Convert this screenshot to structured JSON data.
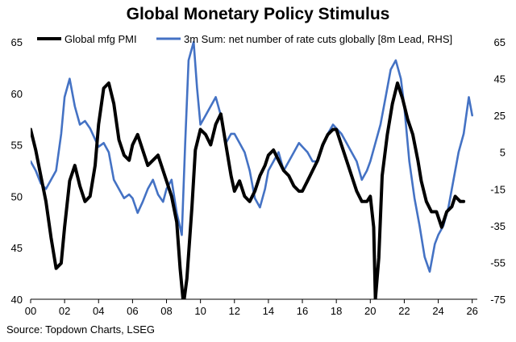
{
  "chart_data": {
    "type": "line",
    "title": "Global Monetary Policy Stimulus",
    "source": "Source: Topdown Charts, LSEG",
    "x_ticks": [
      "00",
      "02",
      "04",
      "06",
      "08",
      "10",
      "12",
      "14",
      "16",
      "18",
      "20",
      "22",
      "24",
      "26"
    ],
    "xlim": [
      2000,
      2026.3
    ],
    "y_left": {
      "ticks": [
        "65",
        "60",
        "55",
        "50",
        "45",
        "40"
      ],
      "lim": [
        40,
        65
      ]
    },
    "y_right": {
      "ticks": [
        "65",
        "45",
        "25",
        "5",
        "-15",
        "-35",
        "-55",
        "-75"
      ],
      "lim": [
        -75,
        65
      ]
    },
    "series": [
      {
        "name": "Global mfg PMI",
        "axis": "left",
        "color": "#000000",
        "x": [
          2000.0,
          2000.3,
          2000.6,
          2000.9,
          2001.2,
          2001.5,
          2001.8,
          2002.0,
          2002.3,
          2002.6,
          2002.9,
          2003.2,
          2003.5,
          2003.8,
          2004.0,
          2004.3,
          2004.6,
          2004.9,
          2005.2,
          2005.5,
          2005.8,
          2006.0,
          2006.3,
          2006.6,
          2006.9,
          2007.2,
          2007.5,
          2007.8,
          2008.0,
          2008.3,
          2008.6,
          2008.8,
          2009.0,
          2009.2,
          2009.5,
          2009.7,
          2010.0,
          2010.3,
          2010.6,
          2010.9,
          2011.2,
          2011.5,
          2011.8,
          2012.0,
          2012.3,
          2012.6,
          2012.9,
          2013.2,
          2013.5,
          2013.8,
          2014.0,
          2014.3,
          2014.6,
          2014.9,
          2015.2,
          2015.5,
          2015.8,
          2016.0,
          2016.3,
          2016.6,
          2016.9,
          2017.2,
          2017.5,
          2017.8,
          2018.0,
          2018.3,
          2018.6,
          2018.9,
          2019.2,
          2019.5,
          2019.8,
          2020.0,
          2020.2,
          2020.3,
          2020.5,
          2020.7,
          2021.0,
          2021.3,
          2021.6,
          2021.9,
          2022.2,
          2022.5,
          2022.8,
          2023.0,
          2023.3,
          2023.6,
          2023.9,
          2024.2,
          2024.5,
          2024.8,
          2025.0,
          2025.3,
          2025.5
        ],
        "y": [
          56.5,
          54.5,
          52.0,
          49.5,
          46.0,
          43.0,
          43.5,
          47.0,
          51.5,
          53.0,
          51.0,
          49.5,
          50.0,
          53.0,
          57.0,
          60.5,
          61.0,
          59.0,
          55.5,
          54.0,
          53.5,
          55.0,
          56.0,
          54.5,
          53.0,
          53.5,
          54.0,
          52.5,
          51.5,
          50.0,
          47.5,
          43.0,
          39.5,
          42.0,
          49.0,
          54.5,
          56.5,
          56.0,
          55.0,
          57.0,
          58.0,
          55.0,
          52.0,
          50.5,
          51.5,
          50.0,
          49.5,
          50.5,
          52.0,
          53.0,
          54.0,
          54.5,
          53.5,
          52.5,
          52.0,
          51.0,
          50.5,
          50.5,
          51.5,
          52.5,
          53.5,
          55.0,
          56.0,
          56.5,
          56.5,
          55.0,
          53.5,
          52.0,
          50.5,
          49.5,
          49.5,
          50.0,
          47.0,
          40.0,
          44.0,
          52.0,
          56.0,
          59.0,
          61.0,
          59.5,
          57.5,
          56.0,
          53.5,
          51.5,
          49.5,
          48.5,
          48.5,
          47.0,
          48.5,
          49.0,
          50.0,
          49.5,
          49.5
        ]
      },
      {
        "name": "3m Sum: net number of rate cuts globally [8m Lead, RHS]",
        "axis": "right",
        "color": "#4472c4",
        "x": [
          2000.0,
          2000.3,
          2000.6,
          2000.9,
          2001.2,
          2001.5,
          2001.8,
          2002.0,
          2002.3,
          2002.6,
          2002.9,
          2003.2,
          2003.5,
          2003.8,
          2004.0,
          2004.3,
          2004.6,
          2004.9,
          2005.2,
          2005.5,
          2005.8,
          2006.0,
          2006.3,
          2006.6,
          2006.9,
          2007.2,
          2007.5,
          2007.8,
          2008.0,
          2008.3,
          2008.6,
          2008.9,
          2009.1,
          2009.3,
          2009.6,
          2009.8,
          2010.0,
          2010.3,
          2010.6,
          2010.9,
          2011.2,
          2011.5,
          2011.8,
          2012.0,
          2012.3,
          2012.6,
          2012.9,
          2013.2,
          2013.5,
          2013.8,
          2014.0,
          2014.3,
          2014.6,
          2014.9,
          2015.2,
          2015.5,
          2015.8,
          2016.0,
          2016.3,
          2016.6,
          2016.9,
          2017.2,
          2017.5,
          2017.8,
          2018.0,
          2018.3,
          2018.6,
          2018.9,
          2019.2,
          2019.5,
          2019.8,
          2020.0,
          2020.3,
          2020.6,
          2020.9,
          2021.2,
          2021.5,
          2021.8,
          2022.0,
          2022.3,
          2022.6,
          2022.9,
          2023.2,
          2023.5,
          2023.8,
          2024.0,
          2024.3,
          2024.6,
          2024.9,
          2025.2,
          2025.5,
          2025.8,
          2026.0
        ],
        "y": [
          0,
          -5,
          -12,
          -15,
          -10,
          -5,
          15,
          35,
          45,
          30,
          20,
          22,
          18,
          12,
          8,
          10,
          5,
          -10,
          -15,
          -20,
          -18,
          -20,
          -28,
          -22,
          -15,
          -10,
          -18,
          -22,
          -15,
          -10,
          -28,
          -40,
          10,
          55,
          65,
          40,
          20,
          25,
          30,
          35,
          25,
          10,
          15,
          15,
          10,
          5,
          -5,
          -20,
          -25,
          -15,
          -5,
          0,
          5,
          -5,
          0,
          5,
          10,
          8,
          5,
          0,
          0,
          8,
          15,
          20,
          18,
          15,
          10,
          5,
          0,
          -10,
          -5,
          0,
          10,
          20,
          35,
          50,
          55,
          45,
          30,
          0,
          -20,
          -35,
          -52,
          -60,
          -45,
          -40,
          -35,
          -25,
          -10,
          5,
          15,
          35,
          25
        ]
      }
    ]
  }
}
